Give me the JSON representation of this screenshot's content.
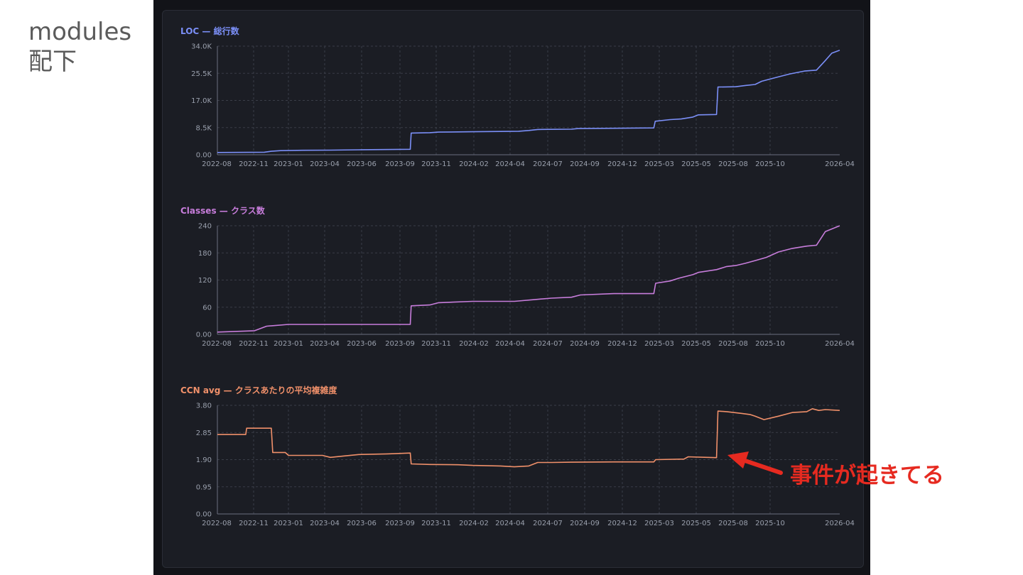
{
  "slide": {
    "title_line1": "modules",
    "title_line2": "配下",
    "annotation": "事件が起きてる"
  },
  "colors": {
    "loc": "#7b8ff7",
    "classes": "#c77ddb",
    "ccn": "#f0906a",
    "annotation": "#e62a20"
  },
  "x_ticks": [
    "2022-08",
    "2022-11",
    "2023-01",
    "2023-04",
    "2023-06",
    "2023-09",
    "2023-11",
    "2024-02",
    "2024-04",
    "2024-07",
    "2024-09",
    "2024-12",
    "2025-03",
    "2025-05",
    "2025-08",
    "2025-10",
    "2026-04"
  ],
  "chart_data": [
    {
      "type": "line",
      "title": "LOC — 総行数",
      "y_ticks": [
        "0.00",
        "8.5K",
        "17.0K",
        "25.5K",
        "34.0K"
      ],
      "ylim": [
        0,
        34000
      ],
      "xlim": [
        "2022-08-01",
        "2026-04-01"
      ],
      "grid": true,
      "series": [
        {
          "color": "#7b8ff7",
          "x": [
            "2022-08-01",
            "2022-11-10",
            "2022-11-25",
            "2022-12-15",
            "2023-02-01",
            "2023-04-01",
            "2023-06-01",
            "2023-09-20",
            "2023-09-22",
            "2023-11-01",
            "2023-11-20",
            "2024-02-01",
            "2024-04-01",
            "2024-05-10",
            "2024-06-01",
            "2024-06-20",
            "2024-09-01",
            "2024-09-15",
            "2024-12-01",
            "2025-02-25",
            "2025-02-28",
            "2025-04-01",
            "2025-04-25",
            "2025-05-20",
            "2025-06-01",
            "2025-07-10",
            "2025-07-13",
            "2025-08-20",
            "2025-09-10",
            "2025-10-01",
            "2025-10-15",
            "2025-11-15",
            "2025-12-15",
            "2026-01-15",
            "2026-02-10",
            "2026-03-01",
            "2026-03-15",
            "2026-04-01"
          ],
          "y": [
            700,
            800,
            1100,
            1300,
            1400,
            1450,
            1550,
            1700,
            6800,
            6900,
            7100,
            7200,
            7300,
            7350,
            7600,
            7900,
            8000,
            8200,
            8300,
            8400,
            10500,
            11000,
            11200,
            11800,
            12500,
            12600,
            21200,
            21300,
            21700,
            22000,
            23000,
            24200,
            25300,
            26200,
            26500,
            29500,
            31800,
            32700
          ]
        }
      ]
    },
    {
      "type": "line",
      "title": "Classes — クラス数",
      "y_ticks": [
        "0.00",
        "60",
        "120",
        "180",
        "240"
      ],
      "ylim": [
        0,
        240
      ],
      "xlim": [
        "2022-08-01",
        "2026-04-01"
      ],
      "grid": true,
      "series": [
        {
          "color": "#c77ddb",
          "x": [
            "2022-08-01",
            "2022-10-20",
            "2022-11-15",
            "2023-01-01",
            "2023-04-01",
            "2023-06-01",
            "2023-09-20",
            "2023-09-22",
            "2023-11-01",
            "2023-11-20",
            "2024-02-01",
            "2024-04-01",
            "2024-05-01",
            "2024-06-15",
            "2024-07-20",
            "2024-09-01",
            "2024-09-20",
            "2024-12-01",
            "2025-02-25",
            "2025-03-01",
            "2025-04-01",
            "2025-04-20",
            "2025-05-20",
            "2025-06-01",
            "2025-07-10",
            "2025-08-01",
            "2025-08-20",
            "2025-09-10",
            "2025-10-01",
            "2025-10-25",
            "2025-11-20",
            "2025-12-20",
            "2026-01-20",
            "2026-02-10",
            "2026-03-01",
            "2026-04-01"
          ],
          "y": [
            5,
            8,
            18,
            22,
            22,
            22,
            22,
            63,
            65,
            70,
            73,
            73,
            73,
            77,
            80,
            82,
            87,
            90,
            90,
            113,
            118,
            124,
            132,
            137,
            143,
            150,
            152,
            157,
            163,
            170,
            182,
            190,
            195,
            197,
            227,
            240
          ]
        }
      ]
    },
    {
      "type": "line",
      "title": "CCN avg — クラスあたりの平均複雑度",
      "y_ticks": [
        "0.00",
        "0.95",
        "1.90",
        "2.85",
        "3.80"
      ],
      "ylim": [
        0,
        3.8
      ],
      "xlim": [
        "2022-08-01",
        "2026-04-01"
      ],
      "grid": true,
      "series": [
        {
          "color": "#f0906a",
          "x": [
            "2022-08-01",
            "2022-10-01",
            "2022-10-03",
            "2022-11-25",
            "2022-11-28",
            "2022-12-25",
            "2023-01-01",
            "2023-03-15",
            "2023-04-01",
            "2023-05-01",
            "2023-06-01",
            "2023-08-01",
            "2023-09-20",
            "2023-09-22",
            "2023-11-01",
            "2024-01-01",
            "2024-02-01",
            "2024-04-01",
            "2024-05-01",
            "2024-06-01",
            "2024-06-20",
            "2024-07-20",
            "2024-09-01",
            "2024-12-01",
            "2025-02-25",
            "2025-03-01",
            "2025-05-01",
            "2025-05-10",
            "2025-06-20",
            "2025-07-10",
            "2025-07-13",
            "2025-08-01",
            "2025-09-01",
            "2025-09-20",
            "2025-10-01",
            "2025-10-20",
            "2025-11-20",
            "2025-12-20",
            "2026-01-20",
            "2026-02-01",
            "2026-02-15",
            "2026-03-01",
            "2026-04-01"
          ],
          "y": [
            2.78,
            2.78,
            3.0,
            3.0,
            2.15,
            2.15,
            2.05,
            2.05,
            1.98,
            2.03,
            2.08,
            2.1,
            2.13,
            1.75,
            1.73,
            1.72,
            1.7,
            1.68,
            1.65,
            1.68,
            1.8,
            1.8,
            1.81,
            1.82,
            1.82,
            1.9,
            1.92,
            2.0,
            1.98,
            1.97,
            3.6,
            3.58,
            3.52,
            3.48,
            3.42,
            3.3,
            3.42,
            3.55,
            3.58,
            3.68,
            3.62,
            3.65,
            3.62
          ]
        }
      ]
    }
  ]
}
